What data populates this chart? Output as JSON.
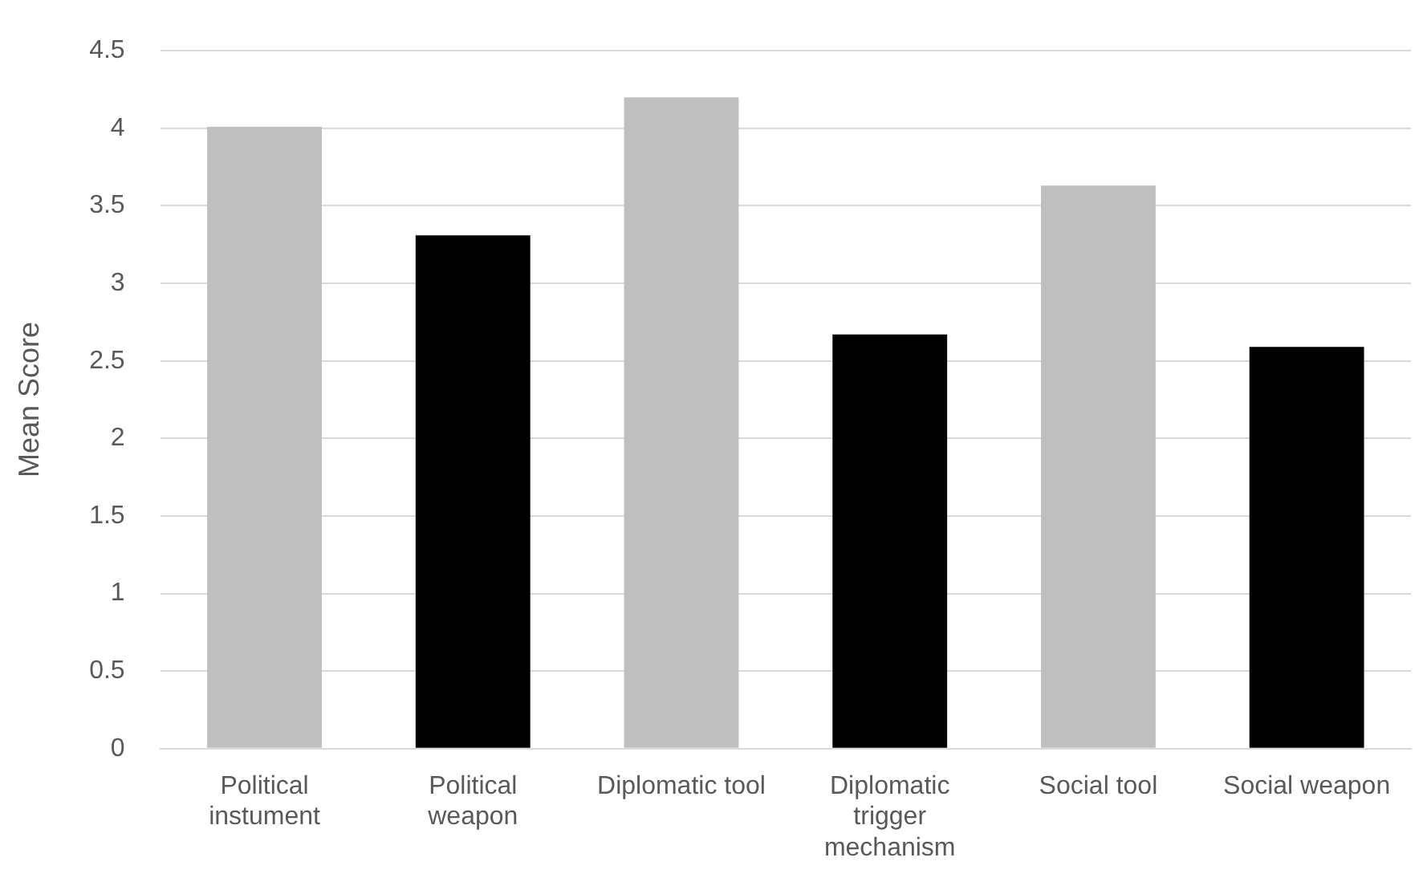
{
  "chart_data": {
    "type": "bar",
    "ylabel": "Mean Score",
    "categories": [
      "Political instument",
      "Political weapon",
      "Diplomatic tool",
      "Diplomatic trigger mechanism",
      "Social tool",
      "Social weapon"
    ],
    "values": [
      4.01,
      3.31,
      4.2,
      2.67,
      3.63,
      2.59
    ],
    "colors": [
      "#bfbfbf",
      "#000000",
      "#bfbfbf",
      "#000000",
      "#bfbfbf",
      "#000000"
    ],
    "ylim": [
      0,
      4.5
    ],
    "yticks": [
      0,
      0.5,
      1,
      1.5,
      2,
      2.5,
      3,
      3.5,
      4,
      4.5
    ],
    "grid": "y"
  }
}
